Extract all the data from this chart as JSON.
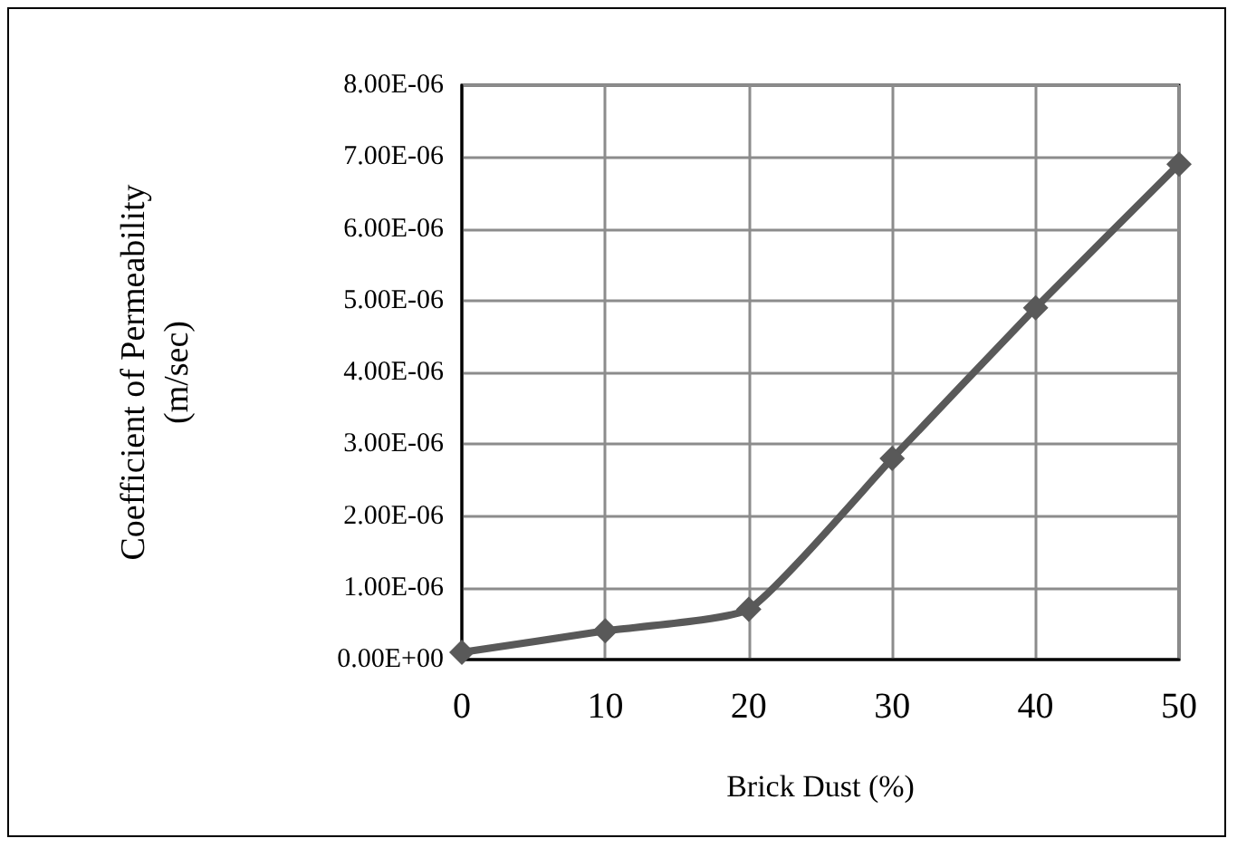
{
  "chart_data": {
    "type": "line",
    "xlabel": "Brick Dust (%)",
    "ylabel": "Coefficient of Permeability\n(m/sec)",
    "x": [
      0,
      10,
      20,
      30,
      40,
      50
    ],
    "series": [
      {
        "color": "#595959",
        "values": [
          1e-07,
          4e-07,
          7e-07,
          2.8e-06,
          4.9e-06,
          6.9e-06
        ]
      }
    ],
    "xlim": [
      0,
      50
    ],
    "xticks": [
      0,
      10,
      20,
      30,
      40,
      50
    ],
    "ylim": [
      0,
      8e-06
    ],
    "yticks": [
      {
        "value": 0,
        "label": "0.00E+00"
      },
      {
        "value": 1e-06,
        "label": "1.00E-06"
      },
      {
        "value": 2e-06,
        "label": "2.00E-06"
      },
      {
        "value": 3e-06,
        "label": "3.00E-06"
      },
      {
        "value": 4e-06,
        "label": "4.00E-06"
      },
      {
        "value": 5e-06,
        "label": "5.00E-06"
      },
      {
        "value": 6e-06,
        "label": "6.00E-06"
      },
      {
        "value": 7e-06,
        "label": "7.00E-06"
      },
      {
        "value": 8e-06,
        "label": "8.00E-06"
      }
    ],
    "grid": true,
    "marker": "diamond",
    "line_style": "solid"
  }
}
